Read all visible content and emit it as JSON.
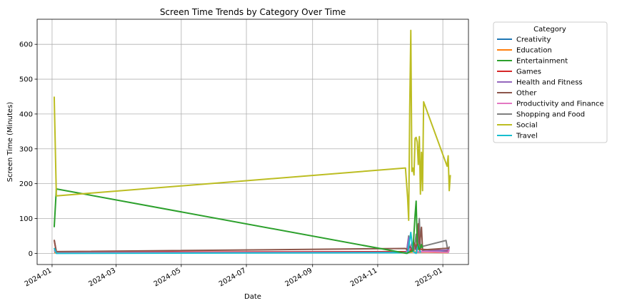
{
  "chart_data": {
    "type": "line",
    "title": "Screen Time Trends by Category Over Time",
    "xlabel": "Date",
    "ylabel": "Screen Time (Minutes)",
    "x_range": [
      "2023-12-18",
      "2025-01-25"
    ],
    "ylim": [
      -32,
      672
    ],
    "x_ticks": [
      "2024-01",
      "2024-03",
      "2024-05",
      "2024-07",
      "2024-09",
      "2024-11",
      "2025-01"
    ],
    "y_ticks": [
      0,
      100,
      200,
      300,
      400,
      500,
      600
    ],
    "grid": true,
    "legend": {
      "title": "Category",
      "placement": "outside-right",
      "entries": [
        "Creativity",
        "Education",
        "Entertainment",
        "Games",
        "Health and Fitness",
        "Other",
        "Productivity and Finance",
        "Shopping and Food",
        "Social",
        "Travel"
      ]
    },
    "colors": {
      "Creativity": "#1f77b4",
      "Education": "#ff7f0e",
      "Entertainment": "#2ca02c",
      "Games": "#d62728",
      "Health and Fitness": "#9467bd",
      "Other": "#8c564b",
      "Productivity and Finance": "#e377c2",
      "Shopping and Food": "#7f7f7f",
      "Social": "#bcbd22",
      "Travel": "#17becf"
    },
    "series": [
      {
        "name": "Creativity",
        "points": [
          [
            "2024-01-03",
            5
          ],
          [
            "2024-01-05",
            2
          ],
          [
            "2024-11-28",
            2
          ],
          [
            "2024-12-01",
            10
          ],
          [
            "2024-12-06",
            3
          ],
          [
            "2025-01-07",
            5
          ]
        ]
      },
      {
        "name": "Education",
        "points": [
          [
            "2024-01-03",
            2
          ],
          [
            "2024-11-30",
            3
          ],
          [
            "2024-12-05",
            4
          ],
          [
            "2025-01-06",
            2
          ]
        ]
      },
      {
        "name": "Shopping and Food",
        "points": [
          [
            "2024-01-03",
            15
          ],
          [
            "2024-01-05",
            3
          ],
          [
            "2024-11-28",
            3
          ],
          [
            "2024-11-30",
            50
          ],
          [
            "2024-12-01",
            5
          ],
          [
            "2024-12-03",
            30
          ],
          [
            "2024-12-05",
            8
          ],
          [
            "2024-12-07",
            55
          ],
          [
            "2024-12-08",
            10
          ],
          [
            "2024-12-10",
            100
          ],
          [
            "2024-12-11",
            15
          ],
          [
            "2024-12-13",
            20
          ],
          [
            "2025-01-04",
            37
          ],
          [
            "2025-01-06",
            2
          ],
          [
            "2025-01-07",
            20
          ]
        ]
      },
      {
        "name": "Games",
        "points": [
          [
            "2024-01-03",
            38
          ],
          [
            "2024-01-05",
            3
          ],
          [
            "2024-11-28",
            5
          ],
          [
            "2024-11-30",
            20
          ],
          [
            "2024-12-02",
            8
          ],
          [
            "2024-12-06",
            25
          ],
          [
            "2024-12-09",
            12
          ],
          [
            "2025-01-07",
            8
          ]
        ]
      },
      {
        "name": "Health and Fitness",
        "points": [
          [
            "2024-01-03",
            10
          ],
          [
            "2024-01-05",
            2
          ],
          [
            "2024-11-28",
            3
          ],
          [
            "2024-11-30",
            45
          ],
          [
            "2024-12-01",
            15
          ],
          [
            "2024-12-04",
            25
          ],
          [
            "2024-12-08",
            5
          ],
          [
            "2025-01-07",
            10
          ]
        ]
      },
      {
        "name": "Productivity and Finance",
        "points": [
          [
            "2024-01-03",
            8
          ],
          [
            "2024-01-05",
            2
          ],
          [
            "2024-11-28",
            2
          ],
          [
            "2024-12-01",
            12
          ],
          [
            "2024-12-05",
            30
          ],
          [
            "2024-12-08",
            5
          ],
          [
            "2025-01-06",
            3
          ],
          [
            "2025-01-07",
            10
          ]
        ]
      },
      {
        "name": "Other",
        "points": [
          [
            "2024-01-03",
            39
          ],
          [
            "2024-01-05",
            5
          ],
          [
            "2024-11-27",
            14
          ],
          [
            "2024-11-29",
            10
          ],
          [
            "2024-12-01",
            20
          ],
          [
            "2024-12-03",
            12
          ],
          [
            "2024-12-05",
            30
          ],
          [
            "2024-12-07",
            10
          ],
          [
            "2024-12-09",
            85
          ],
          [
            "2024-12-10",
            20
          ],
          [
            "2024-12-12",
            75
          ],
          [
            "2024-12-13",
            10
          ],
          [
            "2025-01-07",
            15
          ]
        ]
      },
      {
        "name": "Travel",
        "points": [
          [
            "2024-01-03",
            15
          ],
          [
            "2024-01-05",
            0
          ],
          [
            "2024-11-27",
            2
          ],
          [
            "2024-11-29",
            0
          ],
          [
            "2024-12-02",
            60
          ],
          [
            "2024-12-04",
            5
          ],
          [
            "2024-12-07",
            0
          ],
          [
            "2024-12-09",
            25
          ],
          [
            "2024-12-11",
            2
          ]
        ]
      },
      {
        "name": "Entertainment",
        "points": [
          [
            "2024-01-03",
            75
          ],
          [
            "2024-01-05",
            185
          ],
          [
            "2024-11-28",
            0
          ],
          [
            "2024-12-04",
            8
          ],
          [
            "2024-12-06",
            110
          ],
          [
            "2024-12-07",
            150
          ],
          [
            "2024-12-08",
            30
          ],
          [
            "2024-12-10",
            10
          ],
          [
            "2024-12-12",
            25
          ],
          [
            "2024-12-13",
            15
          ]
        ]
      },
      {
        "name": "Social",
        "points": [
          [
            "2024-01-03",
            450
          ],
          [
            "2024-01-05",
            165
          ],
          [
            "2024-11-27",
            245
          ],
          [
            "2024-11-29",
            160
          ],
          [
            "2024-11-30",
            95
          ],
          [
            "2024-12-01",
            420
          ],
          [
            "2024-12-02",
            640
          ],
          [
            "2024-12-03",
            235
          ],
          [
            "2024-12-04",
            245
          ],
          [
            "2024-12-05",
            225
          ],
          [
            "2024-12-06",
            330
          ],
          [
            "2024-12-07",
            333
          ],
          [
            "2024-12-08",
            320
          ],
          [
            "2024-12-09",
            255
          ],
          [
            "2024-12-10",
            335
          ],
          [
            "2024-12-11",
            170
          ],
          [
            "2024-12-12",
            290
          ],
          [
            "2024-12-13",
            180
          ],
          [
            "2024-12-14",
            435
          ],
          [
            "2025-01-05",
            250
          ],
          [
            "2025-01-06",
            280
          ],
          [
            "2025-01-07",
            180
          ],
          [
            "2025-01-08",
            225
          ]
        ]
      }
    ]
  }
}
